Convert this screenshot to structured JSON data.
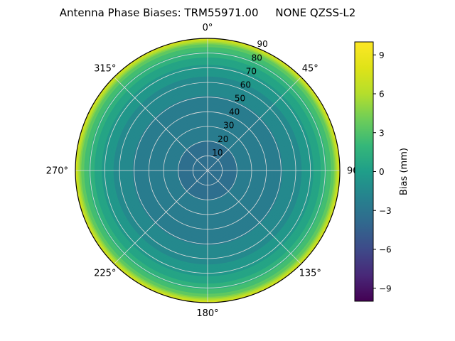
{
  "title": "Antenna Phase Biases: TRM55971.00     NONE QZSS-L2",
  "chart_data": {
    "type": "heatmap",
    "projection": "polar",
    "title": "Antenna Phase Biases: TRM55971.00     NONE QZSS-L2",
    "description": "Polar contour map of antenna phase bias vs zenith angle; values are rotationally symmetric in azimuth",
    "angle_ticks": [
      {
        "value": 0,
        "label": "0°"
      },
      {
        "value": 45,
        "label": "45°"
      },
      {
        "value": 90,
        "label": "90"
      },
      {
        "value": 135,
        "label": "135°"
      },
      {
        "value": 180,
        "label": "180°"
      },
      {
        "value": 225,
        "label": "225°"
      },
      {
        "value": 270,
        "label": "270°"
      },
      {
        "value": 315,
        "label": "315°"
      }
    ],
    "radial_ticks": [
      {
        "value": 10,
        "label": "10"
      },
      {
        "value": 20,
        "label": "20"
      },
      {
        "value": 30,
        "label": "30"
      },
      {
        "value": 40,
        "label": "40"
      },
      {
        "value": 50,
        "label": "50"
      },
      {
        "value": 60,
        "label": "60"
      },
      {
        "value": 70,
        "label": "70"
      },
      {
        "value": 80,
        "label": "80"
      },
      {
        "value": 90,
        "label": "90"
      }
    ],
    "radial_range": [
      0,
      90
    ],
    "contour_step_mm": 1,
    "radial_profile": {
      "zenith_deg": [
        0,
        10,
        20,
        30,
        40,
        50,
        60,
        65,
        70,
        75,
        80,
        83,
        85,
        87,
        88,
        89,
        90
      ],
      "bias_mm": [
        -3.2,
        -3.15,
        -3.0,
        -2.8,
        -2.6,
        -2.1,
        -1.4,
        -0.9,
        -0.3,
        0.6,
        1.6,
        2.6,
        3.4,
        4.6,
        5.5,
        6.8,
        8.5
      ]
    },
    "colorbar": {
      "label": "Bias (mm)",
      "vmin": -10,
      "vmax": 10,
      "ticks": [
        {
          "value": 9,
          "label": "9"
        },
        {
          "value": 6,
          "label": "6"
        },
        {
          "value": 3,
          "label": "3"
        },
        {
          "value": 0,
          "label": "0"
        },
        {
          "value": -3,
          "label": "−3"
        },
        {
          "value": -6,
          "label": "−6"
        },
        {
          "value": -9,
          "label": "−9"
        }
      ]
    },
    "colormap": {
      "name": "viridis",
      "stops": [
        "#440154",
        "#482878",
        "#3e4a89",
        "#31688e",
        "#26828e",
        "#1f9e89",
        "#35b779",
        "#6dcd59",
        "#b4de2c",
        "#dfe318",
        "#fde725"
      ]
    },
    "grid": {
      "color": "#dcdcdc",
      "spine_color": "#000000"
    }
  }
}
